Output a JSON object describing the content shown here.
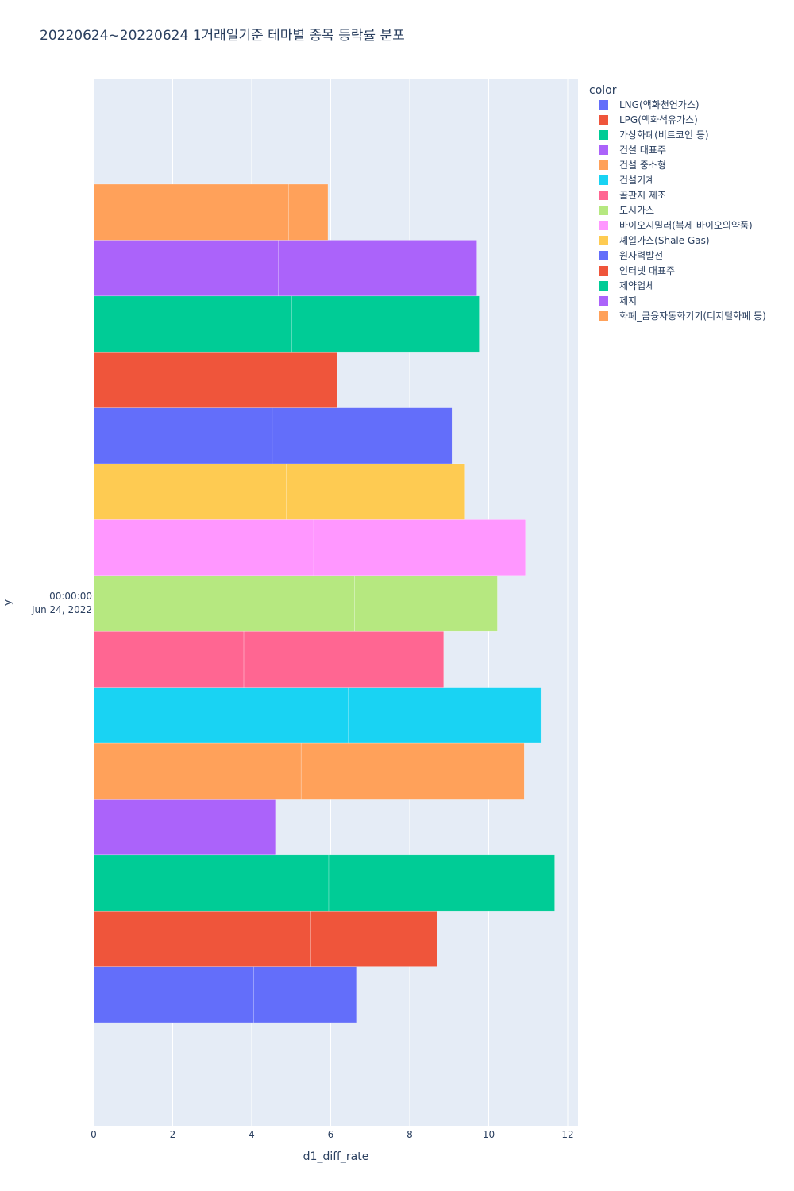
{
  "chart_data": {
    "type": "bar",
    "orientation": "horizontal",
    "barmode": "stacked",
    "title": "20220624~20220624 1거래일기준 테마별 종목 등락률 분포",
    "xlabel": "d1_diff_rate",
    "ylabel": "y",
    "y_category": [
      "00:00:00",
      "Jun 24, 2022"
    ],
    "xlim": [
      0,
      12.25
    ],
    "x_ticks": [
      0,
      2,
      4,
      6,
      8,
      10,
      12
    ],
    "grid": true,
    "legend_title": "color",
    "legend_position": "top-right",
    "series": [
      {
        "name": "LNG(액화천연가스)",
        "color": "#636efa",
        "segments": [
          4.05,
          2.6
        ]
      },
      {
        "name": "LPG(액화석유가스)",
        "color": "#EF553B",
        "segments": [
          5.5,
          3.2
        ]
      },
      {
        "name": "가상화폐(비트코인 등)",
        "color": "#00cc96",
        "segments": [
          5.95,
          5.72
        ]
      },
      {
        "name": "건설 대표주",
        "color": "#ab63fa",
        "segments": [
          4.6
        ]
      },
      {
        "name": "건설 중소형",
        "color": "#FFA15A",
        "segments": [
          5.25,
          5.65
        ]
      },
      {
        "name": "건설기계",
        "color": "#19d3f3",
        "segments": [
          6.45,
          4.87
        ]
      },
      {
        "name": "골판지 제조",
        "color": "#FF6692",
        "segments": [
          3.8,
          5.06
        ]
      },
      {
        "name": "도시가스",
        "color": "#B6E880",
        "segments": [
          6.6,
          3.62
        ]
      },
      {
        "name": "바이오시밀러(복제 바이오의약품)",
        "color": "#FF97FF",
        "segments": [
          5.57,
          5.36
        ]
      },
      {
        "name": "셰일가스(Shale Gas)",
        "color": "#FECB52",
        "segments": [
          4.88,
          4.52
        ]
      },
      {
        "name": "원자력발전",
        "color": "#636efa",
        "segments": [
          4.52,
          4.55
        ]
      },
      {
        "name": "인터넷 대표주",
        "color": "#EF553B",
        "segments": [
          6.17
        ]
      },
      {
        "name": "제약업체",
        "color": "#00cc96",
        "segments": [
          5.02,
          4.74
        ]
      },
      {
        "name": "제지",
        "color": "#ab63fa",
        "segments": [
          4.68,
          5.02
        ]
      },
      {
        "name": "화폐_금융자동화기기(디지털화폐 등)",
        "color": "#FFA15A",
        "segments": [
          4.93,
          1.0
        ]
      }
    ]
  }
}
